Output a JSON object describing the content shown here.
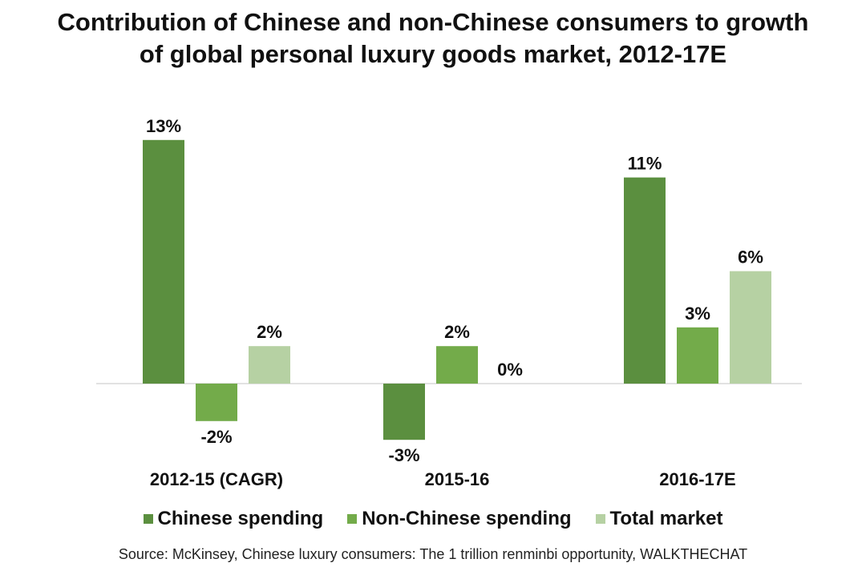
{
  "chart_data": {
    "type": "bar",
    "title_lines": [
      "Contribution of Chinese and non-Chinese consumers to growth",
      "of global personal luxury goods market, 2012-17E"
    ],
    "categories": [
      "2012-15 (CAGR)",
      "2015-16",
      "2016-17E"
    ],
    "series": [
      {
        "name": "Chinese spending",
        "color": "#5b8f3f",
        "values": [
          13,
          -3,
          11
        ],
        "labels": [
          "13%",
          "-3%",
          "11%"
        ]
      },
      {
        "name": "Non-Chinese spending",
        "color": "#73ab4a",
        "values": [
          -2,
          2,
          3
        ],
        "labels": [
          "-2%",
          "2%",
          "3%"
        ]
      },
      {
        "name": "Total market",
        "color": "#b6d1a3",
        "values": [
          2,
          0,
          6
        ],
        "labels": [
          "2%",
          "0%",
          "6%"
        ]
      }
    ],
    "ylim": [
      -5,
      15
    ],
    "grid": false,
    "legend_position": "bottom",
    "source": "Source: McKinsey, Chinese luxury consumers: The 1 trillion renminbi opportunity, WALKTHECHAT"
  }
}
